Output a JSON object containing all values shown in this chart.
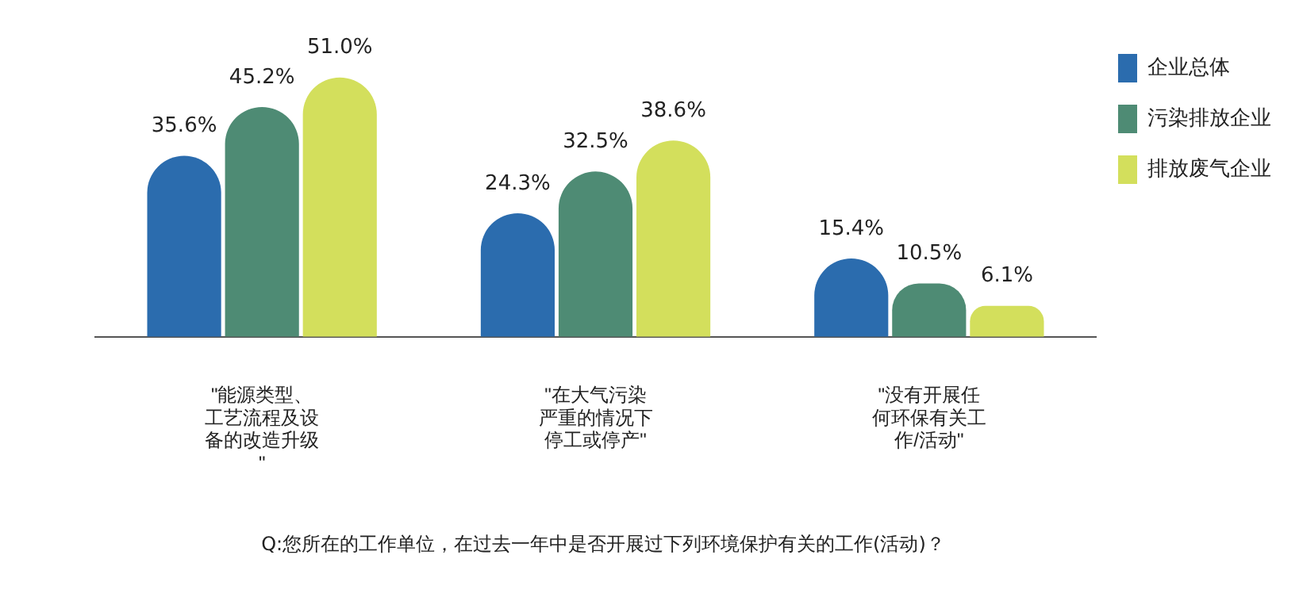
{
  "chart_data": {
    "type": "bar",
    "categories": [
      "\"能源类型、工艺流程及设备的改造升级\"",
      "\"在大气污染严重的情况下停工或停产\"",
      "\"没有开展任何环保有关工作/活动\""
    ],
    "series": [
      {
        "name": "企业总体",
        "color": "#2b6cae",
        "values": [
          35.6,
          24.3,
          15.4
        ],
        "value_labels": [
          "35.6%",
          "24.3%",
          "15.4%"
        ]
      },
      {
        "name": "污染排放企业",
        "color": "#4e8b74",
        "values": [
          45.2,
          32.5,
          10.5
        ],
        "value_labels": [
          "45.2%",
          "32.5%",
          "10.5%"
        ]
      },
      {
        "name": "排放废气企业",
        "color": "#d3df5c",
        "values": [
          51.0,
          38.6,
          6.1
        ],
        "value_labels": [
          "51.0%",
          "38.6%",
          "6.1%"
        ]
      }
    ],
    "legend": "top right",
    "annotations": [
      "Q:您所在的工作单位，在过去一年中是否开展过下列环境保护有关的工作(活动)？"
    ]
  }
}
